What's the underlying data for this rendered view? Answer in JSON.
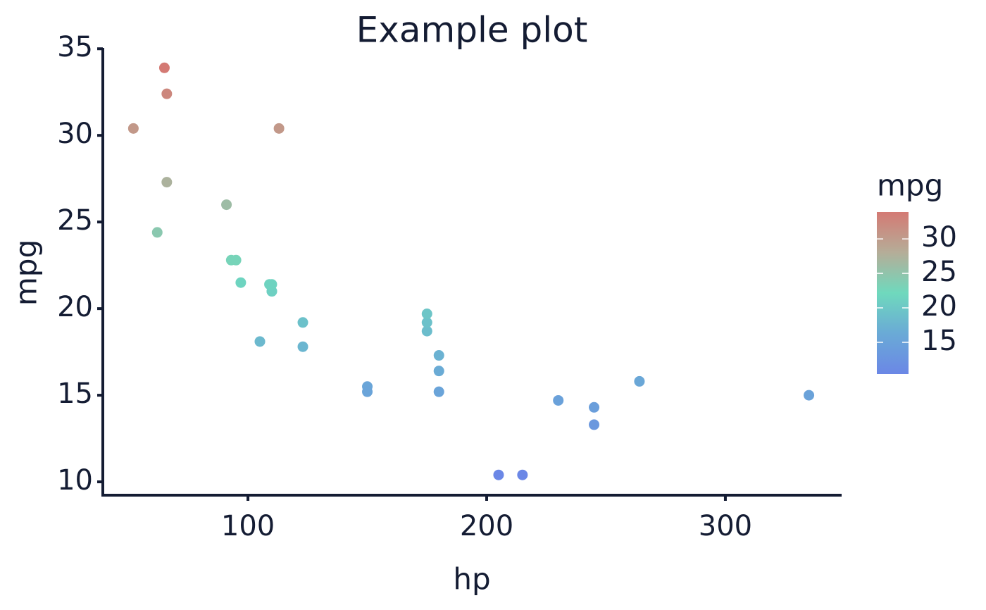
{
  "chart_data": {
    "type": "scatter",
    "title": "Example plot",
    "xlabel": "hp",
    "ylabel": "mpg",
    "x": [
      110,
      110,
      93,
      110,
      175,
      105,
      245,
      62,
      95,
      123,
      123,
      180,
      180,
      180,
      205,
      215,
      230,
      66,
      52,
      65,
      97,
      150,
      150,
      245,
      175,
      66,
      91,
      113,
      264,
      175,
      335,
      109
    ],
    "y": [
      21.0,
      21.0,
      22.8,
      21.4,
      18.7,
      18.1,
      14.3,
      24.4,
      22.8,
      19.2,
      17.8,
      16.4,
      17.3,
      15.2,
      10.4,
      10.4,
      14.7,
      32.4,
      30.4,
      33.9,
      21.5,
      15.5,
      15.2,
      13.3,
      19.2,
      27.3,
      26.0,
      30.4,
      15.8,
      19.7,
      15.0,
      21.4
    ],
    "xlim": [
      39.2,
      348.7
    ],
    "xticks": [
      100,
      200,
      300
    ],
    "ylim": [
      9.23,
      35.05
    ],
    "yticks": [
      10,
      15,
      20,
      25,
      30,
      35
    ],
    "axis_color": "#141c33",
    "colorbar": {
      "title": "mpg",
      "lim": [
        10.4,
        33.9
      ],
      "ticks": [
        15,
        20,
        25,
        30
      ],
      "colors": [
        "#6b87e6",
        "#6aaad6",
        "#6fd9bd",
        "#b5ad98",
        "#d47a74"
      ]
    }
  }
}
